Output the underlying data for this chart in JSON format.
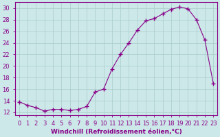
{
  "hours": [
    0,
    1,
    2,
    3,
    4,
    5,
    6,
    7,
    8,
    9,
    10,
    11,
    12,
    13,
    14,
    15,
    16,
    17,
    18,
    19,
    20,
    21,
    22,
    23
  ],
  "values": [
    13.8,
    13.2,
    12.8,
    12.2,
    12.5,
    12.5,
    12.3,
    12.5,
    13.0,
    15.5,
    16.0,
    19.5,
    22.0,
    24.0,
    26.2,
    27.8,
    28.2,
    29.0,
    29.8,
    30.2,
    29.9,
    28.0,
    24.5,
    17.0
  ],
  "line_color": "#880088",
  "marker": "+",
  "marker_size": 4,
  "bg_color": "#cce8e8",
  "grid_color": "#aacccc",
  "xlabel": "Windchill (Refroidissement éolien,°C)",
  "xlim": [
    -0.5,
    23.5
  ],
  "ylim": [
    11.5,
    31.0
  ],
  "yticks": [
    12,
    14,
    16,
    18,
    20,
    22,
    24,
    26,
    28,
    30
  ],
  "xtick_labels": [
    "0",
    "1",
    "2",
    "3",
    "4",
    "5",
    "6",
    "7",
    "8",
    "9",
    "10",
    "11",
    "12",
    "13",
    "14",
    "15",
    "16",
    "17",
    "18",
    "19",
    "20",
    "21",
    "22",
    "23"
  ],
  "font_color": "#880088",
  "tick_fontsize": 6,
  "xlabel_fontsize": 6.5
}
